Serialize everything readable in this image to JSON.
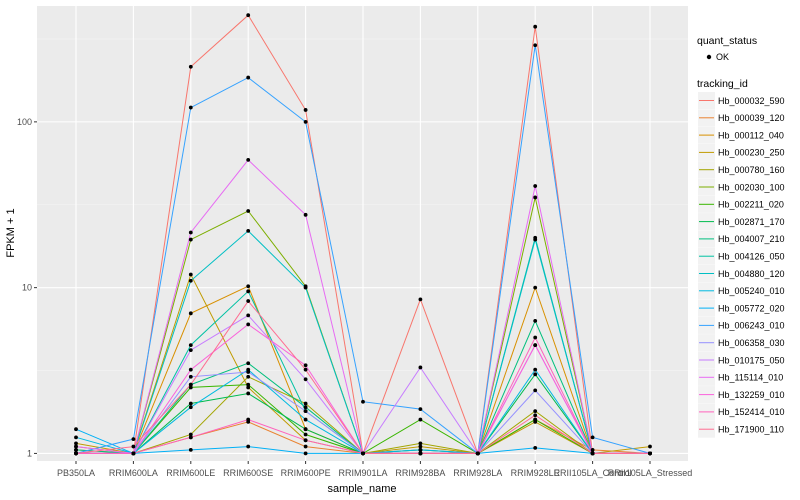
{
  "chart_data": {
    "type": "line",
    "xlabel": "sample_name",
    "ylabel": "FPKM + 1",
    "y_scale": "log10",
    "ylim": [
      0.9,
      500
    ],
    "y_ticks": [
      1,
      10,
      100
    ],
    "y_tick_labels": [
      "1",
      "10",
      "100"
    ],
    "categories": [
      "PB350LA",
      "RRIM600LA",
      "RRIM600LE",
      "RRIM600SE",
      "RRIM600PE",
      "RRIM901LA",
      "RRIM928BA",
      "RRIM928LA",
      "RRIM928LE",
      "RRII105LA_Control",
      "RRII105LA_Stressed"
    ],
    "grid": true,
    "legend_position": "right",
    "legend_shape": {
      "title": "quant_status",
      "entries": [
        "OK"
      ]
    },
    "legend_color_title": "tracking_id",
    "series": [
      {
        "name": "Hb_000032_590",
        "color": "#F8766D",
        "values": [
          1.0,
          1.0,
          215,
          440,
          118,
          1.0,
          8.5,
          1.0,
          375,
          1.0,
          1.0
        ]
      },
      {
        "name": "Hb_000039_120",
        "color": "#EA8331",
        "values": [
          1.05,
          1.0,
          1.25,
          1.55,
          1.1,
          1.0,
          1.05,
          1.0,
          1.6,
          1.05,
          1.0
        ]
      },
      {
        "name": "Hb_000112_040",
        "color": "#D89000",
        "values": [
          1.1,
          1.0,
          7.0,
          10.2,
          1.4,
          1.0,
          1.0,
          1.0,
          10.0,
          1.0,
          1.0
        ]
      },
      {
        "name": "Hb_000230_250",
        "color": "#C09B00",
        "values": [
          1.15,
          1.0,
          12.0,
          2.5,
          1.2,
          1.0,
          1.1,
          1.0,
          1.55,
          1.0,
          1.1
        ]
      },
      {
        "name": "Hb_000780_160",
        "color": "#A3A500",
        "values": [
          1.0,
          1.0,
          1.3,
          2.9,
          2.0,
          1.0,
          1.15,
          1.0,
          1.8,
          1.0,
          1.0
        ]
      },
      {
        "name": "Hb_002030_100",
        "color": "#7CAE00",
        "values": [
          1.0,
          1.0,
          19.5,
          29.0,
          10.2,
          1.0,
          1.0,
          1.0,
          35,
          1.0,
          1.0
        ]
      },
      {
        "name": "Hb_002211_020",
        "color": "#39B600",
        "values": [
          1.0,
          1.0,
          2.5,
          2.6,
          1.3,
          1.0,
          1.6,
          1.0,
          1.6,
          1.0,
          1.0
        ]
      },
      {
        "name": "Hb_002871_170",
        "color": "#00BB4E",
        "values": [
          1.0,
          1.0,
          2.0,
          2.3,
          1.4,
          1.0,
          1.0,
          1.0,
          3.0,
          1.0,
          1.0
        ]
      },
      {
        "name": "Hb_004007_210",
        "color": "#00BF7D",
        "values": [
          1.05,
          1.0,
          2.6,
          3.5,
          1.9,
          1.0,
          1.05,
          1.0,
          6.3,
          1.0,
          1.0
        ]
      },
      {
        "name": "Hb_004126_050",
        "color": "#00C1A3",
        "values": [
          1.0,
          1.0,
          4.5,
          9.5,
          1.8,
          1.0,
          1.0,
          1.0,
          20,
          1.0,
          1.0
        ]
      },
      {
        "name": "Hb_004880_120",
        "color": "#00BFC4",
        "values": [
          1.0,
          1.0,
          11.0,
          22.0,
          10.0,
          1.0,
          1.0,
          1.0,
          19.5,
          1.0,
          1.0
        ]
      },
      {
        "name": "Hb_005240_010",
        "color": "#00BAE0",
        "values": [
          1.25,
          1.0,
          1.9,
          3.2,
          1.6,
          1.0,
          1.05,
          1.0,
          3.2,
          1.0,
          1.0
        ]
      },
      {
        "name": "Hb_005772_020",
        "color": "#00B0F6",
        "values": [
          1.4,
          1.0,
          1.05,
          1.1,
          1.0,
          1.0,
          1.0,
          1.0,
          1.08,
          1.0,
          1.0
        ]
      },
      {
        "name": "Hb_006243_010",
        "color": "#35A2FF",
        "values": [
          1.0,
          1.22,
          122,
          185,
          100,
          2.05,
          1.85,
          1.0,
          290,
          1.25,
          1.0
        ]
      },
      {
        "name": "Hb_006358_030",
        "color": "#9590FF",
        "values": [
          1.0,
          1.0,
          2.9,
          3.1,
          1.8,
          1.0,
          1.0,
          1.0,
          2.4,
          1.0,
          1.0
        ]
      },
      {
        "name": "Hb_010175_050",
        "color": "#C77CFF",
        "values": [
          1.0,
          1.0,
          4.2,
          6.8,
          2.8,
          1.0,
          3.3,
          1.0,
          4.5,
          1.0,
          1.0
        ]
      },
      {
        "name": "Hb_115114_010",
        "color": "#E76BF3",
        "values": [
          1.1,
          1.0,
          21.5,
          59,
          27.5,
          1.0,
          1.0,
          1.0,
          41,
          1.0,
          1.0
        ]
      },
      {
        "name": "Hb_132259_010",
        "color": "#FA62DB",
        "values": [
          1.0,
          1.0,
          3.2,
          6.0,
          3.4,
          1.0,
          1.0,
          1.0,
          4.5,
          1.0,
          1.0
        ]
      },
      {
        "name": "Hb_152414_010",
        "color": "#FF62BC",
        "values": [
          1.0,
          1.0,
          1.25,
          1.6,
          1.2,
          1.0,
          1.0,
          1.0,
          5.0,
          1.0,
          1.0
        ]
      },
      {
        "name": "Hb_171900_110",
        "color": "#FF6C91",
        "values": [
          1.0,
          1.1,
          2.6,
          8.3,
          3.2,
          1.0,
          1.0,
          1.0,
          1.7,
          1.0,
          1.0
        ]
      }
    ]
  }
}
